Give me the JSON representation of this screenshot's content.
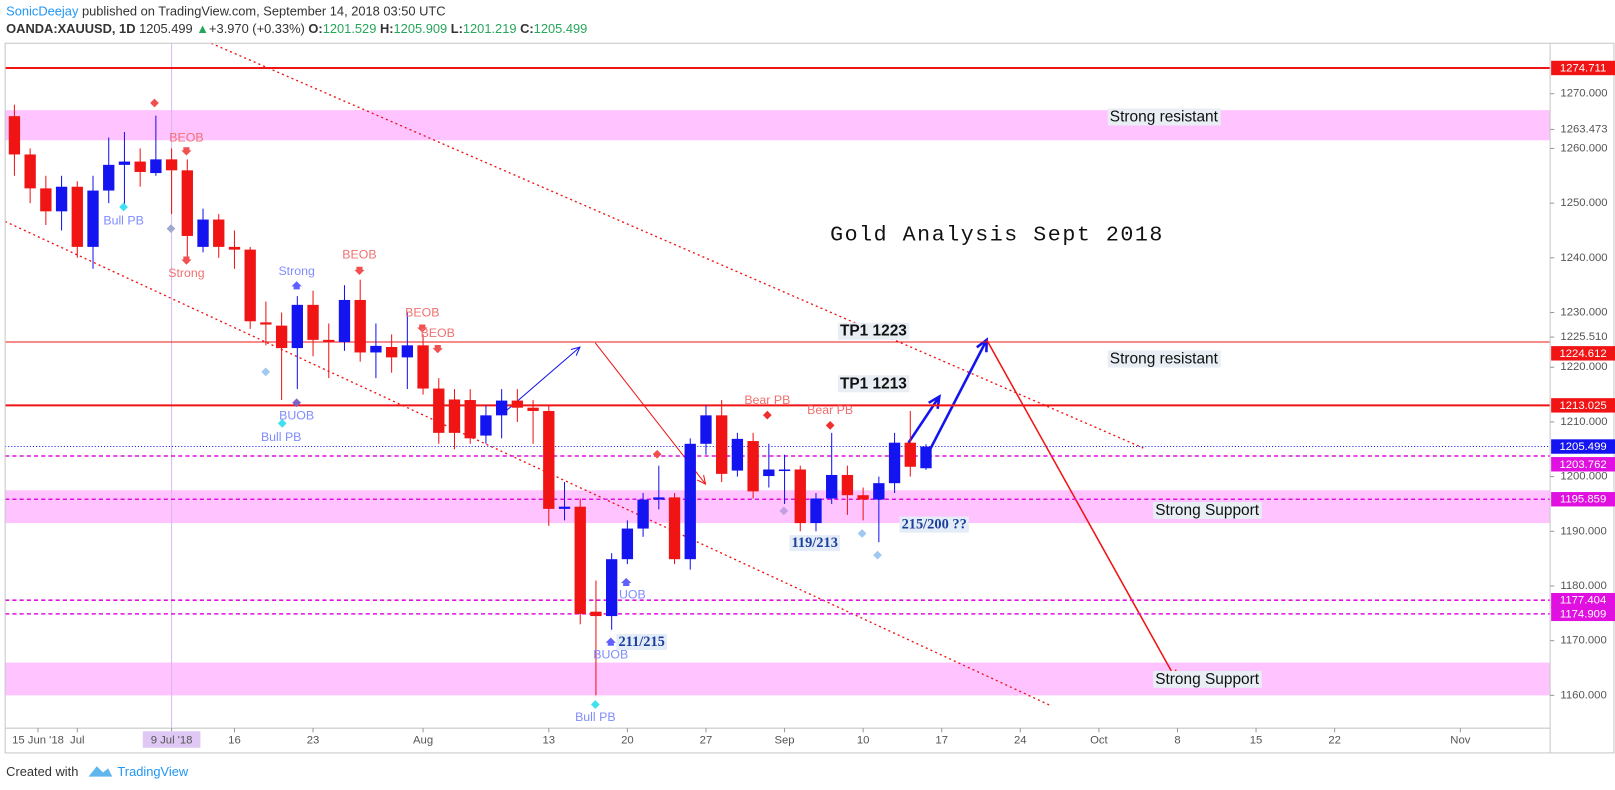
{
  "header": {
    "author": "SonicDeejay",
    "published": "published on TradingView.com, September 14, 2018 03:50 UTC",
    "symbol": "OANDA:XAUUSD, 1D",
    "last": "1205.499",
    "arrow": "▲",
    "change": "+3.970 (+0.33%)",
    "o_label": "O:",
    "o": "1201.529",
    "h_label": "H:",
    "h": "1205.909",
    "l_label": "L:",
    "l": "1201.219",
    "c_label": "C:",
    "c": "1205.499"
  },
  "footer": {
    "created": "Created with",
    "brand": "TradingView"
  },
  "chart_data": {
    "type": "candlestick",
    "up_color": "#1414f0",
    "down_color": "#f01414",
    "open": [
      1265.9,
      1258.9,
      1252.7,
      1248.5,
      1253,
      1242,
      1252.3,
      1257,
      1257.6,
      1255.5,
      1258,
      1256,
      1242,
      1247,
      1242,
      1241.5,
      1228.2,
      1227.6,
      1223.5,
      1231.4,
      1225,
      1224.6,
      1232.3,
      1222.7,
      1223.7,
      1221.8,
      1224,
      1216.1,
      1214.1,
      1214,
      1207.5,
      1211.2,
      1213.9,
      1212.6,
      1212,
      1194.1,
      1194.5,
      1175.3,
      1174.5,
      1184.9,
      1190.5,
      1195.8,
      1196.2,
      1184.9,
      1206,
      1211.2,
      1201.1,
      1206.5,
      1200.1,
      1201.2,
      1201.3,
      1191.5,
      1196,
      1200.3,
      1196.6,
      1195.8,
      1198.8,
      1206.2,
      1201.529
    ],
    "high": [
      1268,
      1260,
      1255,
      1255,
      1254,
      1255,
      1262,
      1263,
      1260,
      1266,
      1260,
      1258,
      1249,
      1248,
      1245,
      1242,
      1232,
      1230,
      1233,
      1234,
      1228,
      1235,
      1236,
      1228,
      1226,
      1230,
      1226,
      1218,
      1216,
      1216,
      1213,
      1216,
      1216,
      1214,
      1213,
      1199,
      1196,
      1181,
      1186,
      1192,
      1197,
      1202,
      1197,
      1207,
      1213,
      1214,
      1208,
      1208,
      1206,
      1204,
      1202,
      1197,
      1208,
      1202,
      1198,
      1200,
      1208,
      1212,
      1205.909
    ],
    "low": [
      1255,
      1250,
      1246,
      1245,
      1240,
      1238,
      1250,
      1249,
      1253,
      1255,
      1248,
      1240,
      1241,
      1240,
      1238,
      1227,
      1224,
      1214,
      1216,
      1222,
      1218,
      1223,
      1221,
      1218,
      1219,
      1216,
      1215,
      1206,
      1205,
      1206,
      1206,
      1207,
      1210,
      1206,
      1191,
      1192,
      1173,
      1160,
      1172,
      1184,
      1189,
      1194,
      1184,
      1183,
      1204,
      1199,
      1200,
      1196,
      1198,
      1195,
      1190,
      1190,
      1195,
      1193,
      1192,
      1188,
      1197,
      1200,
      1201.219
    ],
    "close": [
      1258.9,
      1252.7,
      1248.5,
      1253,
      1242,
      1252.3,
      1257,
      1257.6,
      1255.7,
      1258,
      1256,
      1244,
      1247,
      1242,
      1241.5,
      1228.4,
      1227.8,
      1223.5,
      1231.4,
      1225,
      1224.6,
      1232.3,
      1222.7,
      1223.9,
      1221.8,
      1224,
      1216.1,
      1208,
      1208,
      1207,
      1211.2,
      1213.9,
      1212.6,
      1212,
      1194.1,
      1194.5,
      1174.9,
      1174.5,
      1184.9,
      1190.5,
      1195.8,
      1196.2,
      1184.9,
      1206,
      1211.2,
      1200.5,
      1206.9,
      1197.3,
      1201.3,
      1201.3,
      1191.5,
      1196,
      1200.3,
      1196.6,
      1195.8,
      1198.8,
      1206.2,
      1201.8,
      1205.499
    ],
    "xlim": [
      -0.59,
      97.71
    ],
    "ylim": [
      1154,
      1279.23
    ],
    "xticks": [
      {
        "value": 1.5,
        "label": "15 Jun '18"
      },
      {
        "value": 4,
        "label": "Jul"
      },
      {
        "value": 10,
        "label": "9 Jul '18"
      },
      {
        "value": 14,
        "label": "16"
      },
      {
        "value": 19,
        "label": "23"
      },
      {
        "value": 26,
        "label": "Aug"
      },
      {
        "value": 34,
        "label": "13"
      },
      {
        "value": 39,
        "label": "20"
      },
      {
        "value": 44,
        "label": "27"
      },
      {
        "value": 49,
        "label": "Sep"
      },
      {
        "value": 54,
        "label": "10"
      },
      {
        "value": 59,
        "label": "17"
      },
      {
        "value": 64,
        "label": "24"
      },
      {
        "value": 69,
        "label": "Oct"
      },
      {
        "value": 74,
        "label": "8"
      },
      {
        "value": 79,
        "label": "15"
      },
      {
        "value": 84,
        "label": "22"
      },
      {
        "value": 92,
        "label": "Nov"
      }
    ],
    "yticks": [
      {
        "value": 1160,
        "label": "1160.000"
      },
      {
        "value": 1170,
        "label": "1170.000"
      },
      {
        "value": 1180,
        "label": "1180.000"
      },
      {
        "value": 1190,
        "label": "1190.000"
      },
      {
        "value": 1200,
        "label": "1200.000"
      },
      {
        "value": 1210,
        "label": "1210.000"
      },
      {
        "value": 1220,
        "label": "1220.000"
      },
      {
        "value": 1230,
        "label": "1230.000"
      },
      {
        "value": 1240,
        "label": "1240.000"
      },
      {
        "value": 1250,
        "label": "1250.000"
      },
      {
        "value": 1260,
        "label": "1260.000"
      },
      {
        "value": 1270,
        "label": "1270.000"
      }
    ],
    "axis_marks": [
      1263.473,
      {
        "value": 1225.51,
        "label": "1225.510"
      }
    ],
    "levels": [
      {
        "value": 1274.711,
        "color": "#f01414",
        "style": "solid",
        "width": 2
      },
      {
        "value": 1224.612,
        "color": "#f01414",
        "style": "solid",
        "width": 1
      },
      {
        "value": 1213.025,
        "color": "#f01414",
        "style": "solid",
        "width": 2
      },
      {
        "value": 1205.499,
        "color": "#1414f0",
        "style": "dotted",
        "width": 1
      },
      {
        "value": 1203.762,
        "color": "#e010e0",
        "style": "dashed",
        "width": 1.5
      },
      {
        "value": 1195.859,
        "color": "#e010e0",
        "style": "dashed",
        "width": 1.5
      },
      {
        "value": 1177.404,
        "color": "#e010e0",
        "style": "dashed",
        "width": 1.5
      },
      {
        "value": 1174.909,
        "color": "#e010e0",
        "style": "dashed",
        "width": 1.5
      }
    ],
    "zones": [
      {
        "from": 1261.5,
        "to": 1267,
        "color": "#ffb8ff"
      },
      {
        "from": 1191.5,
        "to": 1197.5,
        "color": "#ffb8ff"
      },
      {
        "from": 1160,
        "to": 1166,
        "color": "#ffb8ff"
      }
    ],
    "pattern_labels": [
      {
        "text": "Bull PB",
        "color": "#7f8cff"
      },
      {
        "text": "BEOB",
        "color": "#f07070"
      },
      {
        "text": "Strong",
        "color": "#f07070"
      },
      {
        "text": "BEOB",
        "color": "#f07070"
      },
      {
        "text": "Strong",
        "color": "#7f8cff"
      },
      {
        "text": "BEOB",
        "color": "#f07070"
      },
      {
        "text": "BEOB",
        "color": "#f07070"
      },
      {
        "text": "BUOB",
        "color": "#7f8cff"
      },
      {
        "text": "Bull PB",
        "color": "#7f8cff"
      },
      {
        "text": "Bear PB",
        "color": "#f07070"
      },
      {
        "text": "Bear PB",
        "color": "#f07070"
      },
      {
        "text": "UOB",
        "color": "#7f8cff"
      },
      {
        "text": "BUOB",
        "color": "#7f8cff"
      },
      {
        "text": "Bull PB",
        "color": "#7f8cff"
      }
    ],
    "notes": [
      "Gold Analysis Sept 2018",
      "TP1 1223",
      "TP1 1213",
      "Strong resistant",
      "Strong resistant",
      "Strong Support",
      "Strong Support",
      "119/213",
      "211/215",
      "215/200 ??"
    ]
  }
}
